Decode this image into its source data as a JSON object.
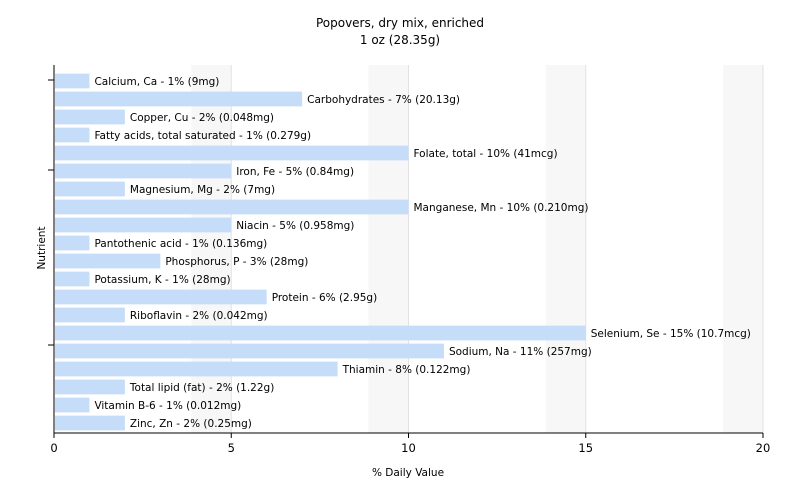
{
  "chart_data": {
    "type": "bar",
    "orientation": "horizontal",
    "title": "Popovers, dry mix, enriched",
    "subtitle": "1 oz (28.35g)",
    "xlabel": "% Daily Value",
    "ylabel": "Nutrient",
    "xlim": [
      0,
      20
    ],
    "xticks": [
      0,
      5,
      10,
      15,
      20
    ],
    "grid": true,
    "bar_color": "#c6ddfa",
    "bars": [
      {
        "value": 1,
        "label": "Calcium, Ca - 1% (9mg)"
      },
      {
        "value": 7,
        "label": "Carbohydrates - 7% (20.13g)"
      },
      {
        "value": 2,
        "label": "Copper, Cu - 2% (0.048mg)"
      },
      {
        "value": 1,
        "label": "Fatty acids, total saturated - 1% (0.279g)"
      },
      {
        "value": 10,
        "label": "Folate, total - 10% (41mcg)"
      },
      {
        "value": 5,
        "label": "Iron, Fe - 5% (0.84mg)"
      },
      {
        "value": 2,
        "label": "Magnesium, Mg - 2% (7mg)"
      },
      {
        "value": 10,
        "label": "Manganese, Mn - 10% (0.210mg)"
      },
      {
        "value": 5,
        "label": "Niacin - 5% (0.958mg)"
      },
      {
        "value": 1,
        "label": "Pantothenic acid - 1% (0.136mg)"
      },
      {
        "value": 3,
        "label": "Phosphorus, P - 3% (28mg)"
      },
      {
        "value": 1,
        "label": "Potassium, K - 1% (28mg)"
      },
      {
        "value": 6,
        "label": "Protein - 6% (2.95g)"
      },
      {
        "value": 2,
        "label": "Riboflavin - 2% (0.042mg)"
      },
      {
        "value": 15,
        "label": "Selenium, Se - 15% (10.7mcg)"
      },
      {
        "value": 11,
        "label": "Sodium, Na - 11% (257mg)"
      },
      {
        "value": 8,
        "label": "Thiamin - 8% (0.122mg)"
      },
      {
        "value": 2,
        "label": "Total lipid (fat) - 2% (1.22g)"
      },
      {
        "value": 1,
        "label": "Vitamin B-6 - 1% (0.012mg)"
      },
      {
        "value": 2,
        "label": "Zinc, Zn - 2% (0.25mg)"
      }
    ]
  }
}
